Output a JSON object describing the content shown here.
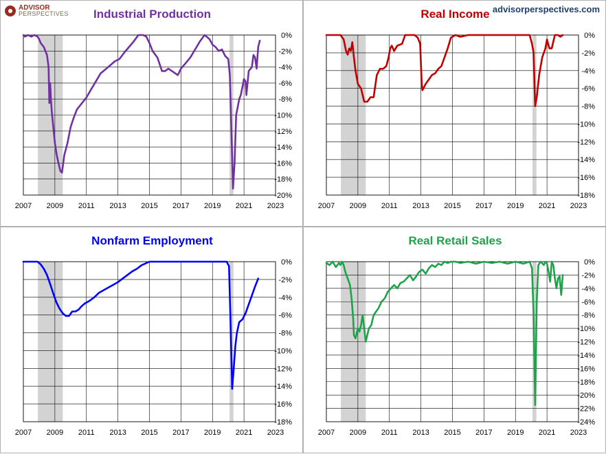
{
  "brand": {
    "logo_line1": "ADVISOR",
    "logo_line2": "PERSPECTIVES",
    "url": "advisorperspectives.com"
  },
  "chart_data": [
    {
      "type": "line",
      "title": "Industrial Production",
      "color": "#7030a0",
      "x_ticks": [
        "2007",
        "2009",
        "2011",
        "2013",
        "2015",
        "2017",
        "2019",
        "2021",
        "2023"
      ],
      "xlim": [
        2007,
        2023
      ],
      "ylim": [
        -20,
        0
      ],
      "y_ticks": [
        "0%",
        "-2%",
        "-4%",
        "-6%",
        "-8%",
        "-10%",
        "-12%",
        "-14%",
        "-16%",
        "-18%",
        "-20%"
      ],
      "recessions": [
        [
          2007.92,
          2009.5
        ],
        [
          2020.08,
          2020.33
        ]
      ],
      "x": [
        2007.0,
        2007.1,
        2007.3,
        2007.5,
        2007.7,
        2007.9,
        2008.0,
        2008.1,
        2008.3,
        2008.5,
        2008.6,
        2008.65,
        2008.7,
        2008.75,
        2008.8,
        2008.9,
        2009.0,
        2009.1,
        2009.2,
        2009.35,
        2009.45,
        2009.6,
        2009.8,
        2010.0,
        2010.2,
        2010.4,
        2010.6,
        2010.8,
        2011.0,
        2011.3,
        2011.6,
        2011.9,
        2012.2,
        2012.5,
        2012.8,
        2013.1,
        2013.4,
        2013.7,
        2014.0,
        2014.3,
        2014.6,
        2014.8,
        2015.0,
        2015.2,
        2015.5,
        2015.8,
        2016.0,
        2016.2,
        2016.5,
        2016.8,
        2017.0,
        2017.3,
        2017.6,
        2017.9,
        2018.2,
        2018.5,
        2018.8,
        2019.0,
        2019.2,
        2019.4,
        2019.6,
        2019.8,
        2020.0,
        2020.1,
        2020.2,
        2020.3,
        2020.4,
        2020.5,
        2020.7,
        2020.8,
        2020.9,
        2021.0,
        2021.1,
        2021.15,
        2021.3,
        2021.5,
        2021.6,
        2021.7,
        2021.8,
        2021.9,
        2022.0
      ],
      "values": [
        0.0,
        -0.2,
        0.0,
        -0.2,
        0.0,
        -0.2,
        -0.5,
        -1.0,
        -1.5,
        -2.5,
        -4.0,
        -8.5,
        -6.0,
        -8.0,
        -9.5,
        -11.5,
        -13.5,
        -14.8,
        -15.8,
        -17.0,
        -17.2,
        -15.0,
        -13.5,
        -11.5,
        -10.3,
        -9.3,
        -8.8,
        -8.3,
        -7.8,
        -6.8,
        -5.8,
        -4.8,
        -4.3,
        -3.8,
        -3.3,
        -3.0,
        -2.2,
        -1.5,
        -0.8,
        0.0,
        0.0,
        -0.2,
        -1.0,
        -2.0,
        -2.8,
        -4.5,
        -4.5,
        -4.2,
        -4.6,
        -5.0,
        -4.2,
        -3.5,
        -2.8,
        -1.8,
        -0.8,
        0.0,
        -0.5,
        -1.2,
        -1.5,
        -2.0,
        -1.8,
        -2.6,
        -3.0,
        -5.0,
        -12.0,
        -19.2,
        -16.0,
        -10.0,
        -8.0,
        -7.5,
        -6.5,
        -5.5,
        -5.8,
        -7.5,
        -4.5,
        -4.0,
        -2.5,
        -2.8,
        -4.2,
        -1.5,
        -0.7
      ]
    },
    {
      "type": "line",
      "title": "Real Income",
      "color": "#c00000",
      "x_ticks": [
        "2007",
        "2009",
        "2011",
        "2013",
        "2015",
        "2017",
        "2019",
        "2021",
        "2023"
      ],
      "xlim": [
        2007,
        2023
      ],
      "ylim": [
        -18,
        0
      ],
      "y_ticks": [
        "0%",
        "-2%",
        "-4%",
        "-6%",
        "-8%",
        "-10%",
        "-12%",
        "-14%",
        "-16%",
        "-18%"
      ],
      "recessions": [
        [
          2007.92,
          2009.5
        ],
        [
          2020.08,
          2020.33
        ]
      ],
      "x": [
        2007.0,
        2007.5,
        2007.9,
        2008.1,
        2008.25,
        2008.35,
        2008.45,
        2008.55,
        2008.65,
        2008.75,
        2008.85,
        2009.0,
        2009.2,
        2009.4,
        2009.6,
        2009.8,
        2010.0,
        2010.2,
        2010.4,
        2010.6,
        2010.8,
        2010.95,
        2011.05,
        2011.15,
        2011.3,
        2011.5,
        2011.8,
        2012.0,
        2012.3,
        2012.6,
        2012.8,
        2012.95,
        2013.05,
        2013.1,
        2013.3,
        2013.5,
        2013.7,
        2013.9,
        2014.1,
        2014.3,
        2014.5,
        2014.7,
        2014.9,
        2015.2,
        2015.5,
        2016.0,
        2016.5,
        2017.0,
        2017.5,
        2018.0,
        2018.5,
        2019.0,
        2019.5,
        2019.9,
        2020.05,
        2020.15,
        2020.25,
        2020.35,
        2020.5,
        2020.7,
        2020.9,
        2021.0,
        2021.15,
        2021.3,
        2021.5,
        2021.7,
        2021.85,
        2022.0
      ],
      "values": [
        0.0,
        0.0,
        0.0,
        -0.5,
        -1.8,
        -2.2,
        -1.5,
        -1.8,
        -0.8,
        -2.5,
        -4.0,
        -5.5,
        -6.0,
        -7.5,
        -7.5,
        -7.0,
        -7.0,
        -4.5,
        -3.8,
        -3.8,
        -3.5,
        -2.5,
        -1.5,
        -1.2,
        -1.8,
        -1.2,
        -1.0,
        0.0,
        0.0,
        0.0,
        -0.3,
        -1.0,
        -5.5,
        -6.2,
        -5.5,
        -5.0,
        -4.5,
        -4.3,
        -3.8,
        -3.5,
        -2.5,
        -1.5,
        -0.3,
        0.0,
        -0.2,
        0.0,
        0.0,
        0.0,
        0.0,
        0.0,
        0.0,
        0.0,
        0.0,
        0.0,
        -1.0,
        -2.0,
        -8.0,
        -7.0,
        -4.5,
        -2.5,
        -1.5,
        -0.5,
        -1.5,
        -1.5,
        0.0,
        0.0,
        -0.2,
        0.0
      ]
    },
    {
      "type": "line",
      "title": "Nonfarm Employment",
      "color": "#0000ff",
      "x_ticks": [
        "2007",
        "2009",
        "2011",
        "2013",
        "2015",
        "2017",
        "2019",
        "2021",
        "2023"
      ],
      "xlim": [
        2007,
        2023
      ],
      "ylim": [
        -18,
        0
      ],
      "y_ticks": [
        "0%",
        "-2%",
        "-4%",
        "-6%",
        "-8%",
        "-10%",
        "-12%",
        "-14%",
        "-16%",
        "-18%"
      ],
      "recessions": [
        [
          2007.92,
          2009.5
        ],
        [
          2020.08,
          2020.33
        ]
      ],
      "x": [
        2007.0,
        2007.5,
        2007.9,
        2008.1,
        2008.3,
        2008.5,
        2008.7,
        2008.9,
        2009.1,
        2009.3,
        2009.5,
        2009.7,
        2009.9,
        2010.1,
        2010.3,
        2010.5,
        2010.7,
        2010.9,
        2011.2,
        2011.5,
        2011.8,
        2012.1,
        2012.4,
        2012.7,
        2013.0,
        2013.3,
        2013.6,
        2013.9,
        2014.2,
        2014.5,
        2015.0,
        2016.0,
        2017.0,
        2018.0,
        2019.0,
        2019.9,
        2020.05,
        2020.15,
        2020.25,
        2020.35,
        2020.45,
        2020.55,
        2020.7,
        2020.9,
        2021.1,
        2021.3,
        2021.5,
        2021.7,
        2021.9
      ],
      "values": [
        0.0,
        0.0,
        0.0,
        -0.3,
        -0.8,
        -1.5,
        -2.5,
        -3.6,
        -4.6,
        -5.3,
        -5.8,
        -6.1,
        -6.1,
        -5.6,
        -5.6,
        -5.4,
        -5.0,
        -4.7,
        -4.4,
        -4.0,
        -3.5,
        -3.2,
        -2.9,
        -2.6,
        -2.3,
        -1.9,
        -1.5,
        -1.1,
        -0.8,
        -0.4,
        0.0,
        0.0,
        0.0,
        0.0,
        0.0,
        0.0,
        -0.5,
        -7.0,
        -14.3,
        -12.0,
        -9.5,
        -8.0,
        -6.8,
        -6.5,
        -5.8,
        -4.8,
        -3.8,
        -2.8,
        -1.9
      ]
    },
    {
      "type": "line",
      "title": "Real Retail Sales",
      "color": "#1fa34a",
      "x_ticks": [
        "2007",
        "2009",
        "2011",
        "2013",
        "2015",
        "2017",
        "2019",
        "2021",
        "2023"
      ],
      "xlim": [
        2007,
        2023
      ],
      "ylim": [
        -24,
        0
      ],
      "y_ticks": [
        "0%",
        "-2%",
        "-4%",
        "-6%",
        "-8%",
        "-10%",
        "-12%",
        "-14%",
        "-16%",
        "-18%",
        "-20%",
        "-22%",
        "-24%"
      ],
      "recessions": [
        [
          2007.92,
          2009.5
        ],
        [
          2020.08,
          2020.33
        ]
      ],
      "x": [
        2007.0,
        2007.2,
        2007.4,
        2007.6,
        2007.8,
        2007.9,
        2008.0,
        2008.1,
        2008.2,
        2008.35,
        2008.5,
        2008.6,
        2008.7,
        2008.75,
        2008.85,
        2009.0,
        2009.1,
        2009.2,
        2009.3,
        2009.4,
        2009.5,
        2009.6,
        2009.7,
        2009.85,
        2010.0,
        2010.15,
        2010.3,
        2010.5,
        2010.7,
        2010.9,
        2011.1,
        2011.3,
        2011.5,
        2011.7,
        2011.9,
        2012.1,
        2012.3,
        2012.5,
        2012.7,
        2012.9,
        2013.1,
        2013.3,
        2013.5,
        2013.7,
        2013.9,
        2014.1,
        2014.3,
        2014.5,
        2014.7,
        2014.9,
        2015.2,
        2015.5,
        2016.0,
        2016.5,
        2017.0,
        2017.5,
        2018.0,
        2018.5,
        2019.0,
        2019.5,
        2019.9,
        2020.05,
        2020.15,
        2020.25,
        2020.35,
        2020.45,
        2020.6,
        2020.8,
        2020.9,
        2021.0,
        2021.1,
        2021.2,
        2021.3,
        2021.4,
        2021.5,
        2021.6,
        2021.7,
        2021.8,
        2021.9,
        2022.0
      ],
      "values": [
        -0.2,
        -0.5,
        0.0,
        -0.8,
        -0.2,
        -0.5,
        0.0,
        -0.5,
        -1.5,
        -2.5,
        -3.5,
        -5.5,
        -8.5,
        -11.0,
        -11.5,
        -10.0,
        -10.5,
        -9.5,
        -8.0,
        -10.0,
        -12.0,
        -11.0,
        -10.0,
        -9.5,
        -8.0,
        -7.5,
        -7.0,
        -6.0,
        -5.5,
        -4.5,
        -4.0,
        -3.5,
        -4.0,
        -3.2,
        -3.0,
        -2.5,
        -2.0,
        -2.8,
        -2.2,
        -1.5,
        -1.2,
        -1.8,
        -1.0,
        -0.5,
        -0.8,
        -0.3,
        -0.5,
        0.0,
        -0.2,
        0.0,
        0.0,
        -0.2,
        0.0,
        -0.3,
        0.0,
        -0.2,
        0.0,
        -0.3,
        0.0,
        -0.3,
        0.0,
        -1.0,
        -8.0,
        -21.5,
        -6.0,
        -0.5,
        0.0,
        -0.5,
        0.0,
        -0.3,
        -1.5,
        -3.0,
        0.0,
        -0.5,
        -2.5,
        -4.0,
        -2.5,
        -2.2,
        -5.0,
        -2.0
      ]
    }
  ]
}
